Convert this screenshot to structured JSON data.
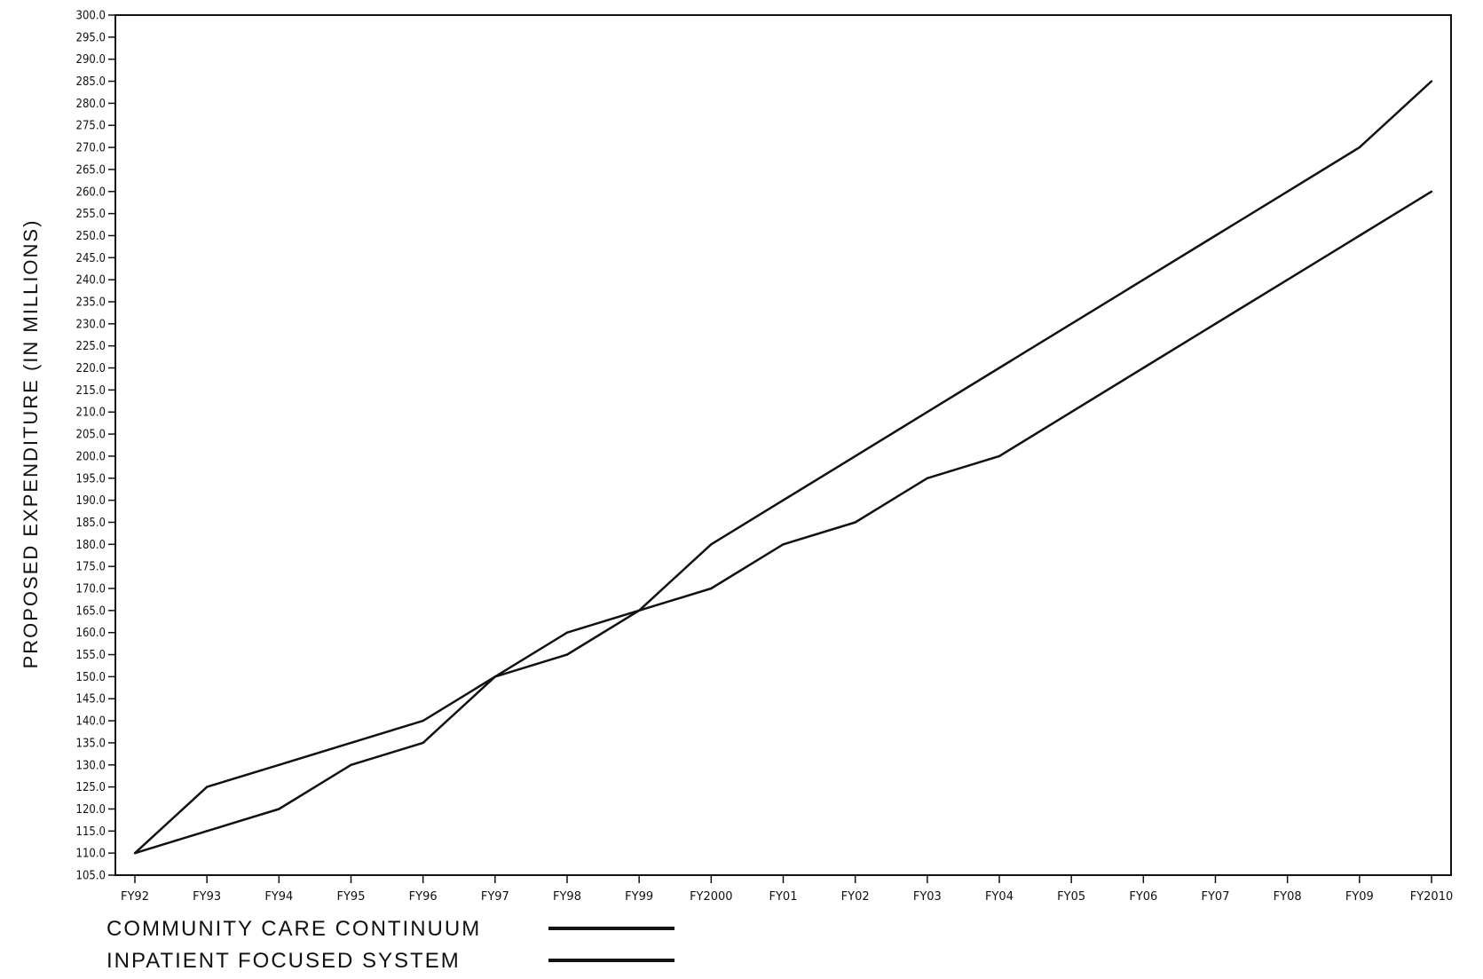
{
  "chart_data": {
    "type": "line",
    "title": "",
    "xlabel": "",
    "ylabel": "PROPOSED EXPENDITURE (IN MILLIONS)",
    "ylim": [
      105.0,
      300.0
    ],
    "ytick_step": 5.0,
    "categories": [
      "FY92",
      "FY93",
      "FY94",
      "FY95",
      "FY96",
      "FY97",
      "FY98",
      "FY99",
      "FY2000",
      "FY01",
      "FY02",
      "FY03",
      "FY04",
      "FY05",
      "FY06",
      "FY07",
      "FY08",
      "FY09",
      "FY2010"
    ],
    "series": [
      {
        "name": "COMMUNITY CARE CONTINUUM",
        "values": [
          110,
          125,
          130,
          135,
          140,
          150,
          155,
          165,
          180,
          190,
          200,
          210,
          220,
          230,
          240,
          250,
          260,
          270,
          285
        ]
      },
      {
        "name": "INPATIENT FOCUSED SYSTEM",
        "values": [
          110,
          115,
          120,
          130,
          135,
          150,
          160,
          165,
          170,
          180,
          185,
          195,
          200,
          210,
          220,
          230,
          240,
          250,
          260
        ]
      }
    ],
    "grid": false,
    "legend_position": "bottom-left",
    "line_color": "#111111"
  }
}
